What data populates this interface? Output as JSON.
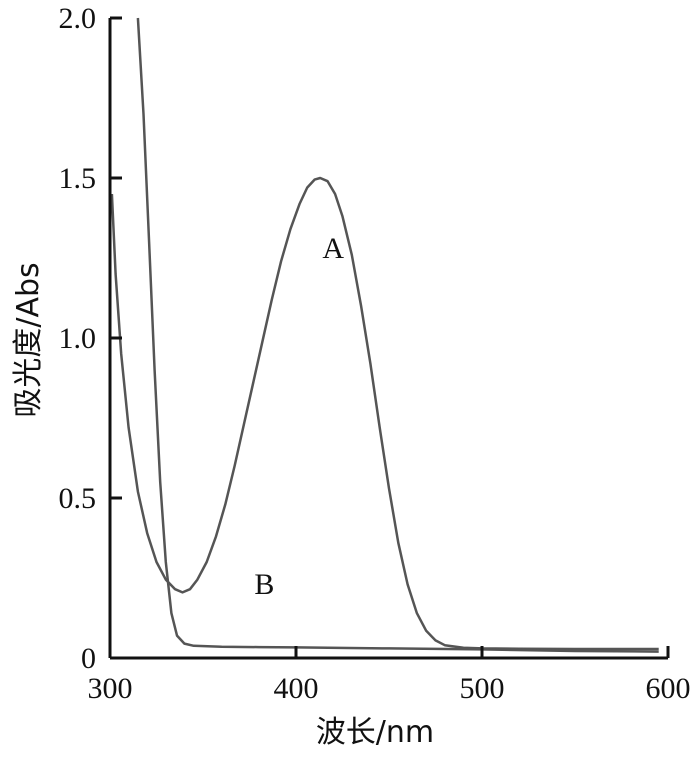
{
  "chart_data": {
    "type": "line",
    "xlabel": "波长/nm",
    "ylabel": "吸光度/Abs",
    "xlim": [
      300,
      600
    ],
    "ylim": [
      0,
      2.0
    ],
    "x_ticks": [
      300,
      400,
      500,
      600
    ],
    "y_ticks": [
      0,
      0.5,
      1.0,
      1.5,
      2.0
    ],
    "x_tick_labels": [
      "300",
      "400",
      "500",
      "600"
    ],
    "y_tick_labels": [
      "0",
      "0.5",
      "1.0",
      "1.5",
      "2.0"
    ],
    "grid": false,
    "line_color": "#555555",
    "series": [
      {
        "name": "A",
        "points": [
          [
            301,
            1.45
          ],
          [
            303,
            1.2
          ],
          [
            306,
            0.95
          ],
          [
            310,
            0.72
          ],
          [
            315,
            0.52
          ],
          [
            320,
            0.39
          ],
          [
            325,
            0.3
          ],
          [
            330,
            0.245
          ],
          [
            335,
            0.215
          ],
          [
            339,
            0.205
          ],
          [
            343,
            0.215
          ],
          [
            347,
            0.245
          ],
          [
            352,
            0.3
          ],
          [
            357,
            0.38
          ],
          [
            362,
            0.48
          ],
          [
            367,
            0.6
          ],
          [
            372,
            0.73
          ],
          [
            377,
            0.86
          ],
          [
            382,
            0.99
          ],
          [
            387,
            1.12
          ],
          [
            392,
            1.24
          ],
          [
            397,
            1.34
          ],
          [
            402,
            1.42
          ],
          [
            406,
            1.47
          ],
          [
            410,
            1.495
          ],
          [
            413,
            1.5
          ],
          [
            417,
            1.49
          ],
          [
            421,
            1.45
          ],
          [
            425,
            1.38
          ],
          [
            430,
            1.26
          ],
          [
            435,
            1.1
          ],
          [
            440,
            0.92
          ],
          [
            445,
            0.72
          ],
          [
            450,
            0.53
          ],
          [
            455,
            0.36
          ],
          [
            460,
            0.23
          ],
          [
            465,
            0.14
          ],
          [
            470,
            0.085
          ],
          [
            475,
            0.055
          ],
          [
            480,
            0.04
          ],
          [
            490,
            0.032
          ],
          [
            500,
            0.03
          ],
          [
            520,
            0.029
          ],
          [
            550,
            0.028
          ],
          [
            580,
            0.028
          ],
          [
            595,
            0.028
          ]
        ]
      },
      {
        "name": "B",
        "points": [
          [
            315,
            2.0
          ],
          [
            318,
            1.7
          ],
          [
            321,
            1.3
          ],
          [
            324,
            0.9
          ],
          [
            327,
            0.55
          ],
          [
            330,
            0.3
          ],
          [
            333,
            0.14
          ],
          [
            336,
            0.07
          ],
          [
            340,
            0.045
          ],
          [
            345,
            0.038
          ],
          [
            360,
            0.035
          ],
          [
            380,
            0.034
          ],
          [
            400,
            0.033
          ],
          [
            450,
            0.03
          ],
          [
            500,
            0.027
          ],
          [
            550,
            0.022
          ],
          [
            595,
            0.02
          ]
        ]
      }
    ],
    "annotations": [
      {
        "text": "A",
        "x": 420,
        "y": 1.25
      },
      {
        "text": "B",
        "x": 383,
        "y": 0.2
      }
    ]
  }
}
